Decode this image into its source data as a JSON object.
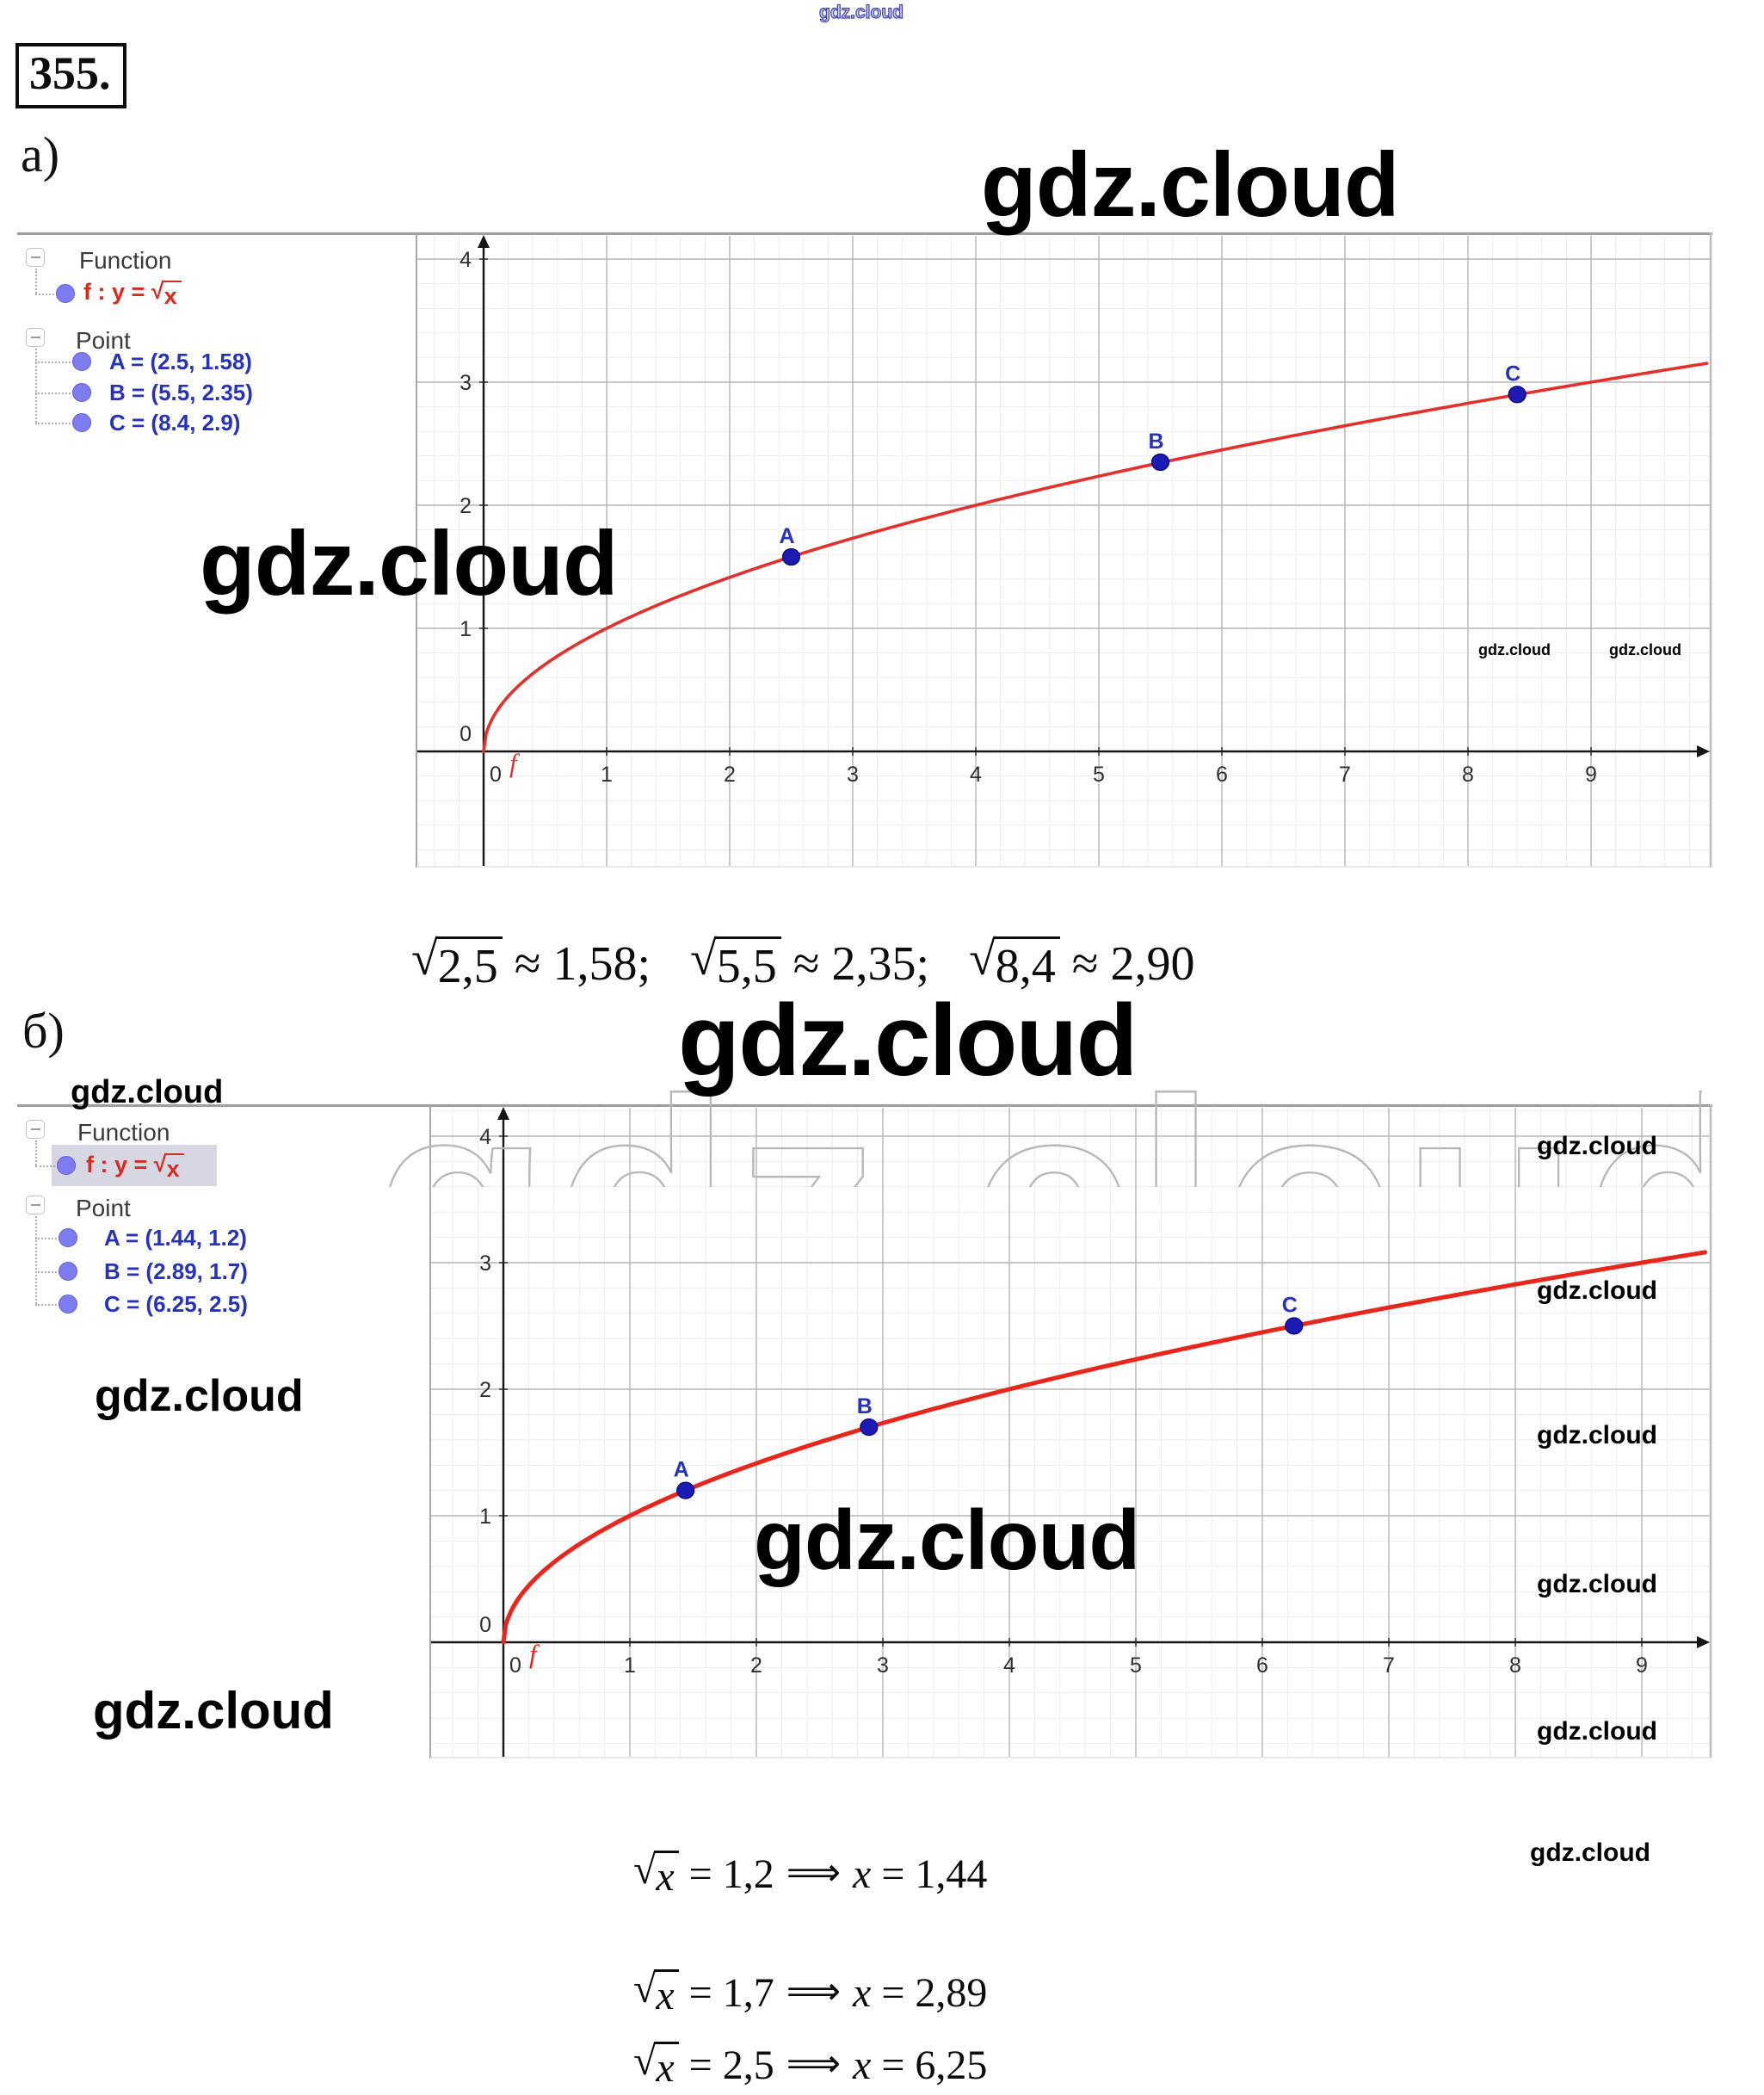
{
  "page": {
    "problem_number": "355.",
    "part_a": "а)",
    "part_b": "б)"
  },
  "watermark": {
    "text": "gdz.cloud"
  },
  "symbols": {
    "sqrt": "√"
  },
  "panel_a": {
    "function_header": "Function",
    "function_prefix": "f : y = ",
    "function_radicand": "x",
    "point_header": "Point",
    "points": [
      "A = (2.5, 1.58)",
      "B = (5.5, 2.35)",
      "C = (8.4, 2.9)"
    ]
  },
  "panel_b": {
    "function_header": "Function",
    "function_prefix": "f : y = ",
    "function_radicand": "x",
    "point_header": "Point",
    "points": [
      "A = (1.44, 1.2)",
      "B = (2.89, 1.7)",
      "C = (6.25, 2.5)"
    ]
  },
  "formula_a": {
    "items": [
      {
        "radicand": "2,5",
        "rest": " ≈ 1,58;"
      },
      {
        "radicand": "5,5",
        "rest": " ≈ 2,35;"
      },
      {
        "radicand": "8,4",
        "rest": " ≈ 2,90"
      }
    ]
  },
  "solutions": [
    {
      "radicand": "x",
      "left": " = 1,2 ",
      "arrow": "⟹",
      "var": " x ",
      "right": "= 1,44"
    },
    {
      "radicand": "x",
      "left": " = 1,7 ",
      "arrow": "⟹",
      "var": " x ",
      "right": "= 2,89"
    },
    {
      "radicand": "x",
      "left": " = 2,5 ",
      "arrow": "⟹",
      "var": " x ",
      "right": "= 6,25"
    }
  ],
  "chart_data": [
    {
      "id": "a",
      "type": "line",
      "title": "GeoGebra graph of f : y = √x with marked points",
      "function_label": "f : y = √x",
      "curve": "y = sqrt(x)",
      "curve_label": "f",
      "curve_color": "#e3302b",
      "point_color": "#1c1cb4",
      "point_label_color": "#2633b8",
      "points": [
        {
          "label": "A",
          "x": 2.5,
          "y": 1.58
        },
        {
          "label": "B",
          "x": 5.5,
          "y": 2.35
        },
        {
          "label": "C",
          "x": 8.4,
          "y": 2.9
        }
      ],
      "x_ticks": [
        "0",
        "1",
        "2",
        "3",
        "4",
        "5",
        "6",
        "7",
        "8",
        "9"
      ],
      "y_ticks": [
        "0",
        "1",
        "2",
        "3",
        "4"
      ],
      "xlim": [
        -0.55,
        9.99
      ],
      "ylim": [
        -0.94,
        4.16
      ],
      "grid": {
        "major": 1,
        "minor": 0.2
      },
      "legend_position": "none"
    },
    {
      "id": "b",
      "type": "line",
      "title": "GeoGebra graph of f : y = √x with marked points",
      "function_label": "f : y = √x",
      "curve": "y = sqrt(x)",
      "curve_label": "f",
      "curve_color": "#e8261c",
      "point_color": "#1c1cb4",
      "point_label_color": "#2633b8",
      "points": [
        {
          "label": "A",
          "x": 1.44,
          "y": 1.2
        },
        {
          "label": "B",
          "x": 2.89,
          "y": 1.7
        },
        {
          "label": "C",
          "x": 6.25,
          "y": 2.5
        }
      ],
      "x_ticks": [
        "0",
        "1",
        "2",
        "3",
        "4",
        "5",
        "6",
        "7",
        "8",
        "9"
      ],
      "y_ticks": [
        "0",
        "1",
        "2",
        "3",
        "4"
      ],
      "xlim": [
        -0.55,
        9.56
      ],
      "ylim": [
        -0.92,
        4.22
      ],
      "grid": {
        "major": 1,
        "minor": 0.2
      },
      "legend_position": "none"
    }
  ]
}
